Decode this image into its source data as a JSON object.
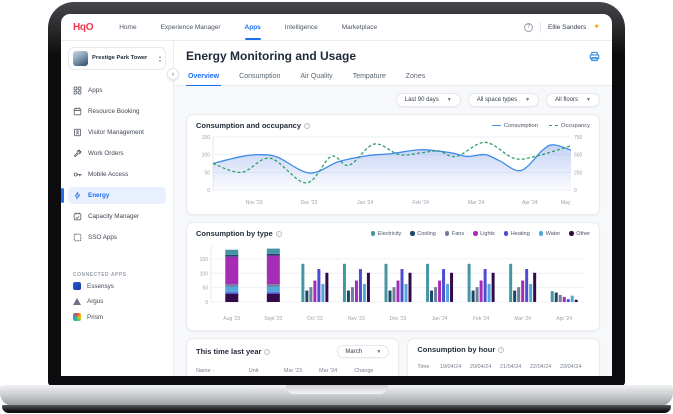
{
  "nav": {
    "logo": "HqO",
    "items": [
      "Home",
      "Experience Manager",
      "Apps",
      "Intelligence",
      "Marketplace"
    ],
    "active_item": "Apps",
    "user_name": "Ellie Sanders"
  },
  "sidebar": {
    "building_name": "Prestige Park Tower",
    "items": [
      "Apps",
      "Resource Booking",
      "Visitor Management",
      "Work Orders",
      "Mobile Access",
      "Energy",
      "Capacity Manager",
      "SSO Apps"
    ],
    "active_item": "Energy",
    "connected_header": "CONNECTED APPS",
    "connected_apps": [
      "Essensys",
      "Argus",
      "Prism"
    ]
  },
  "page": {
    "title": "Energy Monitoring and Usage",
    "tabs": [
      "Overview",
      "Consumption",
      "Air Quality",
      "Tempature",
      "Zones"
    ],
    "active_tab": "Overview",
    "filters": [
      "Last 90 days",
      "All space types",
      "All floors"
    ]
  },
  "bottom": {
    "last_year": {
      "title": "This time last year",
      "month_filter": "March",
      "columns": [
        "Name",
        "Unit",
        "Mar '23",
        "Mar '24",
        "Change"
      ]
    },
    "by_hour": {
      "title": "Consumption by hour",
      "columns": [
        "Time",
        "19/04/24",
        "20/04/24",
        "21/04/24",
        "22/04/24",
        "23/04/24"
      ]
    }
  },
  "colors": {
    "accent_blue": "#1E6FF2",
    "brand_red": "#F4364C"
  },
  "chart_data": [
    {
      "type": "line",
      "title": "Consumption and occupancy",
      "legend_position": "top-right",
      "grid": true,
      "left_axis": {
        "ticks": [
          0,
          50,
          100,
          150
        ],
        "lim": [
          0,
          150
        ]
      },
      "right_axis": {
        "ticks": [
          0,
          250,
          500,
          750
        ],
        "lim": [
          0,
          750
        ]
      },
      "x_ticks": [
        {
          "label": "Nov '23",
          "pos": 0.115
        },
        {
          "label": "Dec '23",
          "pos": 0.268
        },
        {
          "label": "Jan '24",
          "pos": 0.425
        },
        {
          "label": "Feb '24",
          "pos": 0.58
        },
        {
          "label": "Mar '24",
          "pos": 0.735
        },
        {
          "label": "Apr '24",
          "pos": 0.885
        },
        {
          "label": "May",
          "pos": 0.985
        }
      ],
      "series": [
        {
          "name": "Consumption",
          "axis": "left",
          "color": "#3D8BE8",
          "dash": false,
          "area": true,
          "points": [
            [
              0,
              75
            ],
            [
              0.08,
              95
            ],
            [
              0.13,
              100
            ],
            [
              0.18,
              93
            ],
            [
              0.27,
              48
            ],
            [
              0.35,
              80
            ],
            [
              0.43,
              97
            ],
            [
              0.5,
              103
            ],
            [
              0.58,
              114
            ],
            [
              0.66,
              106
            ],
            [
              0.71,
              95
            ],
            [
              0.76,
              100
            ],
            [
              0.8,
              83
            ],
            [
              0.86,
              55
            ],
            [
              0.92,
              112
            ],
            [
              0.95,
              128
            ],
            [
              1,
              113
            ]
          ]
        },
        {
          "name": "Occupancy",
          "axis": "right",
          "color": "#2F9E68",
          "dash": true,
          "area": false,
          "points": [
            [
              0,
              375
            ],
            [
              0.08,
              250
            ],
            [
              0.16,
              450
            ],
            [
              0.26,
              100
            ],
            [
              0.33,
              475
            ],
            [
              0.38,
              350
            ],
            [
              0.45,
              650
            ],
            [
              0.52,
              500
            ],
            [
              0.58,
              525
            ],
            [
              0.63,
              550
            ],
            [
              0.68,
              475
            ],
            [
              0.76,
              675
            ],
            [
              0.84,
              450
            ],
            [
              0.9,
              475
            ],
            [
              1,
              625
            ]
          ]
        }
      ]
    },
    {
      "type": "bar",
      "title": "Consumption by type",
      "legend_position": "top-right",
      "grid": true,
      "categories": [
        "Aug '23",
        "Sept '23",
        "Oct '23",
        "Nov '23",
        "Dec '23",
        "Jan '24",
        "Feb '24",
        "Mar '24",
        "Apr '24"
      ],
      "stacked_count": 2,
      "yticks": [
        0,
        50,
        100,
        150
      ],
      "ylim": [
        0,
        195
      ],
      "stack_order": [
        "Other",
        "Heating",
        "Water",
        "Fans",
        "Lights",
        "Cooling",
        "Electricity"
      ],
      "series": [
        {
          "name": "Electricity",
          "color": "#4695A5",
          "stack": [
            18,
            18
          ],
          "grouped": [
            133,
            133,
            133,
            133,
            133,
            133,
            38
          ]
        },
        {
          "name": "Cooling",
          "color": "#1B4965",
          "stack": [
            6,
            6
          ],
          "grouped": [
            40,
            40,
            40,
            40,
            40,
            40,
            33
          ]
        },
        {
          "name": "Fans",
          "color": "#717D9C",
          "stack": [
            8,
            8
          ],
          "grouped": [
            52,
            52,
            52,
            52,
            52,
            52,
            25
          ]
        },
        {
          "name": "Lights",
          "color": "#A62CB5",
          "stack": [
            96,
            100
          ],
          "grouped": [
            75,
            75,
            75,
            75,
            75,
            75,
            18
          ]
        },
        {
          "name": "Heating",
          "color": "#4D4DD3",
          "stack": [
            6,
            6
          ],
          "grouped": [
            115,
            115,
            115,
            115,
            115,
            115,
            10
          ]
        },
        {
          "name": "Water",
          "color": "#53A7DD",
          "stack": [
            20,
            20
          ],
          "grouped": [
            63,
            63,
            63,
            63,
            63,
            63,
            22
          ]
        },
        {
          "name": "Other",
          "color": "#330A4A",
          "stack": [
            28,
            28
          ],
          "grouped": [
            102,
            102,
            102,
            102,
            102,
            102,
            8
          ]
        }
      ]
    }
  ]
}
